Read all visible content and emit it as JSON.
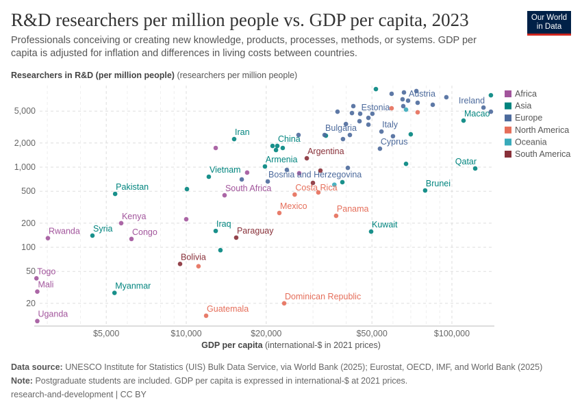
{
  "header": {
    "title": "R&D researchers per million people vs. GDP per capita, 2023",
    "subtitle": "Professionals conceiving or creating new knowledge, products, processes, methods, or systems. GDP per capita is adjusted for inflation and differences in living costs between countries.",
    "logo_text": "Our World in Data"
  },
  "footer": {
    "source_label": "Data source:",
    "source": "UNESCO Institute for Statistics (UIS) Bulk Data Service, via World Bank (2025); Eurostat, OECD, IMF, and World Bank (2025)",
    "note_label": "Note:",
    "note": "Postgraduate students are included. GDP per capita is expressed in international-$ at 2021 prices.",
    "license": "research-and-development | CC BY"
  },
  "chart_data": {
    "type": "scatter",
    "title": "R&D researchers per million people vs. GDP per capita, 2023",
    "xlabel_bold": "GDP per capita",
    "xlabel_unit": "(international-$ in 2021 prices)",
    "ylabel_bold": "Researchers in R&D (per million people)",
    "ylabel_unit": "(researchers per million people)",
    "x_scale": "log",
    "y_scale": "log",
    "xlim": [
      2680,
      142800
    ],
    "ylim": [
      10.6,
      10400
    ],
    "x_ticks": [
      {
        "v": 5000,
        "label": "$5,000"
      },
      {
        "v": 10000,
        "label": "$10,000"
      },
      {
        "v": 20000,
        "label": "$20,000"
      },
      {
        "v": 50000,
        "label": "$50,000"
      },
      {
        "v": 100000,
        "label": "$100,000"
      }
    ],
    "y_ticks": [
      {
        "v": 20,
        "label": "20"
      },
      {
        "v": 50,
        "label": "50"
      },
      {
        "v": 100,
        "label": "100"
      },
      {
        "v": 200,
        "label": "200"
      },
      {
        "v": 500,
        "label": "500"
      },
      {
        "v": 1000,
        "label": "1,000"
      },
      {
        "v": 2000,
        "label": "2,000"
      },
      {
        "v": 5000,
        "label": "5,000"
      }
    ],
    "grid": true,
    "legend_placement": "right",
    "legend": [
      {
        "name": "Africa",
        "color": "#a2559c"
      },
      {
        "name": "Asia",
        "color": "#00847e"
      },
      {
        "name": "Europe",
        "color": "#4c6a9c"
      },
      {
        "name": "North America",
        "color": "#e56e5a"
      },
      {
        "name": "Oceania",
        "color": "#38aaba"
      },
      {
        "name": "South America",
        "color": "#883039"
      }
    ],
    "points": [
      {
        "x": 3015,
        "y": 130,
        "region": "Africa",
        "label": "Rwanda"
      },
      {
        "x": 2730,
        "y": 41,
        "region": "Africa",
        "label": "Togo"
      },
      {
        "x": 2750,
        "y": 28,
        "region": "Africa",
        "label": "Mali"
      },
      {
        "x": 2750,
        "y": 12,
        "region": "Africa",
        "label": "Uganda"
      },
      {
        "x": 5690,
        "y": 200,
        "region": "Africa",
        "label": "Kenya"
      },
      {
        "x": 6220,
        "y": 127,
        "region": "Africa",
        "label": "Congo"
      },
      {
        "x": 13940,
        "y": 446,
        "region": "Africa",
        "label": "South Africa"
      },
      {
        "x": 12910,
        "y": 1735,
        "region": "Africa"
      },
      {
        "x": 10000,
        "y": 224,
        "region": "Africa"
      },
      {
        "x": 16950,
        "y": 855,
        "region": "Africa"
      },
      {
        "x": 26620,
        "y": 838,
        "region": "Africa"
      },
      {
        "x": 15150,
        "y": 2240,
        "region": "Asia",
        "label": "Iran"
      },
      {
        "x": 22020,
        "y": 1840,
        "region": "Asia",
        "label": "China"
      },
      {
        "x": 21130,
        "y": 1840,
        "region": "Asia"
      },
      {
        "x": 21770,
        "y": 1636,
        "region": "Asia"
      },
      {
        "x": 23080,
        "y": 1735,
        "region": "Asia"
      },
      {
        "x": 19780,
        "y": 1020,
        "region": "Asia",
        "label": "Armenia"
      },
      {
        "x": 12160,
        "y": 759,
        "region": "Asia",
        "label": "Vietnam"
      },
      {
        "x": 5400,
        "y": 464,
        "region": "Asia",
        "label": "Pakistan"
      },
      {
        "x": 10060,
        "y": 532,
        "region": "Asia"
      },
      {
        "x": 4435,
        "y": 140,
        "region": "Asia",
        "label": "Syria"
      },
      {
        "x": 12910,
        "y": 160,
        "region": "Asia",
        "label": "Iraq"
      },
      {
        "x": 13450,
        "y": 92,
        "region": "Asia"
      },
      {
        "x": 5370,
        "y": 27,
        "region": "Asia",
        "label": "Myanmar"
      },
      {
        "x": 49650,
        "y": 157,
        "region": "Asia",
        "label": "Kuwait"
      },
      {
        "x": 122400,
        "y": 962,
        "region": "Asia",
        "label": "Qatar"
      },
      {
        "x": 79300,
        "y": 512,
        "region": "Asia",
        "label": "Brunei"
      },
      {
        "x": 110600,
        "y": 3810,
        "region": "Asia",
        "label": "Macao"
      },
      {
        "x": 140200,
        "y": 7890,
        "region": "Asia"
      },
      {
        "x": 51750,
        "y": 9420,
        "region": "Asia"
      },
      {
        "x": 70000,
        "y": 2570,
        "region": "Asia"
      },
      {
        "x": 67200,
        "y": 1100,
        "region": "Asia"
      },
      {
        "x": 38700,
        "y": 649,
        "region": "Asia"
      },
      {
        "x": 33550,
        "y": 2470,
        "region": "Asia"
      },
      {
        "x": 67200,
        "y": 5220,
        "region": "Oceania"
      },
      {
        "x": 36100,
        "y": 604,
        "region": "Oceania"
      },
      {
        "x": 59300,
        "y": 8220,
        "region": "Europe"
      },
      {
        "x": 66000,
        "y": 8550,
        "region": "Europe"
      },
      {
        "x": 73500,
        "y": 8890,
        "region": "Europe"
      },
      {
        "x": 65200,
        "y": 7020,
        "region": "Europe"
      },
      {
        "x": 68400,
        "y": 6750,
        "region": "Europe",
        "label": "Austria"
      },
      {
        "x": 74300,
        "y": 6360,
        "region": "Europe"
      },
      {
        "x": 65600,
        "y": 5770,
        "region": "Europe"
      },
      {
        "x": 95300,
        "y": 7450,
        "region": "Europe"
      },
      {
        "x": 84700,
        "y": 6000,
        "region": "Europe"
      },
      {
        "x": 131500,
        "y": 5540,
        "region": "Europe",
        "label": "Ireland"
      },
      {
        "x": 140200,
        "y": 4920,
        "region": "Europe"
      },
      {
        "x": 42550,
        "y": 5770,
        "region": "Europe"
      },
      {
        "x": 37100,
        "y": 4920,
        "region": "Europe"
      },
      {
        "x": 42050,
        "y": 4730,
        "region": "Europe"
      },
      {
        "x": 45150,
        "y": 4640,
        "region": "Europe"
      },
      {
        "x": 50200,
        "y": 4640,
        "region": "Europe"
      },
      {
        "x": 44900,
        "y": 3740,
        "region": "Europe"
      },
      {
        "x": 48500,
        "y": 4120,
        "region": "Europe"
      },
      {
        "x": 48500,
        "y": 3390,
        "region": "Europe"
      },
      {
        "x": 39900,
        "y": 3450,
        "region": "Europe"
      },
      {
        "x": 26460,
        "y": 2520,
        "region": "Europe"
      },
      {
        "x": 33170,
        "y": 2520,
        "region": "Europe",
        "label": "Bulgaria"
      },
      {
        "x": 41300,
        "y": 2520,
        "region": "Europe"
      },
      {
        "x": 38900,
        "y": 2240,
        "region": "Europe"
      },
      {
        "x": 54300,
        "y": 2780,
        "region": "Europe",
        "label": "Italy"
      },
      {
        "x": 60000,
        "y": 2430,
        "region": "Europe"
      },
      {
        "x": 53600,
        "y": 1700,
        "region": "Europe",
        "label": "Cyprus"
      },
      {
        "x": 23920,
        "y": 924,
        "region": "Europe"
      },
      {
        "x": 40580,
        "y": 980,
        "region": "Europe"
      },
      {
        "x": 20270,
        "y": 662,
        "region": "Europe",
        "label": "Bosnia and Herzegovina"
      },
      {
        "x": 16180,
        "y": 702,
        "region": "Europe"
      },
      {
        "x": 59300,
        "y": 5430,
        "region": "North America",
        "label": "Estonia_marker"
      },
      {
        "x": 74300,
        "y": 4830,
        "region": "North America"
      },
      {
        "x": 25600,
        "y": 455,
        "region": "North America",
        "label": "Costa Rica"
      },
      {
        "x": 31420,
        "y": 483,
        "region": "North America"
      },
      {
        "x": 22410,
        "y": 268,
        "region": "North America",
        "label": "Mexico"
      },
      {
        "x": 36660,
        "y": 247,
        "region": "North America",
        "label": "Panama"
      },
      {
        "x": 23370,
        "y": 20,
        "region": "North America",
        "label": "Dominican Republic"
      },
      {
        "x": 11880,
        "y": 14,
        "region": "North America",
        "label": "Guatemala"
      },
      {
        "x": 11120,
        "y": 58,
        "region": "North America"
      },
      {
        "x": 28430,
        "y": 1291,
        "region": "South America",
        "label": "Argentina"
      },
      {
        "x": 32000,
        "y": 906,
        "region": "South America"
      },
      {
        "x": 29980,
        "y": 636,
        "region": "South America"
      },
      {
        "x": 15420,
        "y": 132,
        "region": "South America",
        "label": "Paraguay"
      },
      {
        "x": 9480,
        "y": 62,
        "region": "South America",
        "label": "Bolivia"
      },
      {
        "x": 60500,
        "y": 5550,
        "region": "Europe",
        "label": "Estonia"
      }
    ]
  }
}
